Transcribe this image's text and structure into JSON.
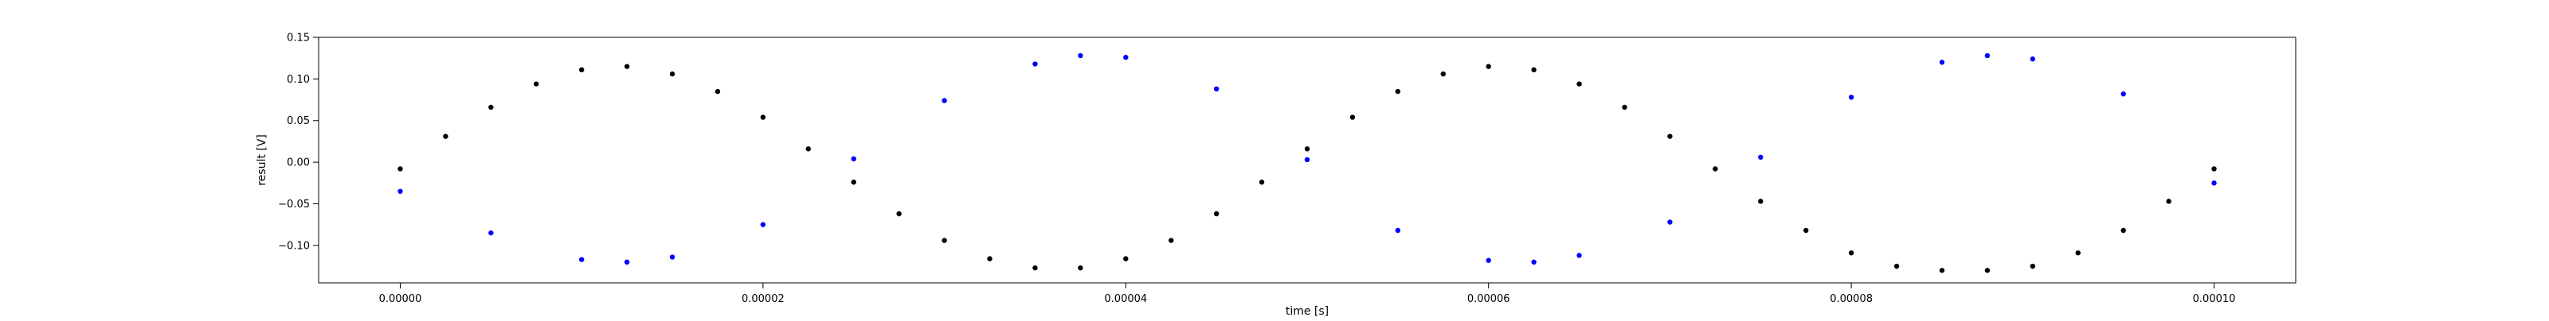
{
  "chart_data": {
    "type": "scatter",
    "title": "",
    "xlabel": "time [s]",
    "ylabel": "result [V]",
    "xlim": [
      -4.5e-06,
      0.0001045
    ],
    "ylim": [
      -0.145,
      0.15
    ],
    "x_ticks": [
      0,
      2e-05,
      4e-05,
      6e-05,
      8e-05,
      0.0001
    ],
    "x_tick_labels": [
      "0.00000",
      "0.00002",
      "0.00004",
      "0.00006",
      "0.00008",
      "0.00010"
    ],
    "y_ticks": [
      -0.1,
      -0.05,
      0.0,
      0.05,
      0.1,
      0.15
    ],
    "y_tick_labels": [
      "−0.10",
      "−0.05",
      "0.00",
      "0.05",
      "0.10",
      "0.15"
    ],
    "grid": false,
    "legend": "none",
    "series": [
      {
        "color": "#0000ff",
        "x": [
          0,
          5e-06,
          1e-05,
          1.25e-05,
          1.5e-05,
          2e-05,
          2.5e-05,
          3e-05,
          3.5e-05,
          3.75e-05,
          4e-05,
          4.5e-05,
          5e-05,
          5.5e-05,
          6e-05,
          6.25e-05,
          6.5e-05,
          7e-05,
          7.5e-05,
          8e-05,
          8.5e-05,
          8.75e-05,
          9e-05,
          9.5e-05,
          0.0001
        ],
        "y": [
          -0.035,
          -0.085,
          -0.117,
          -0.12,
          -0.114,
          -0.075,
          0.004,
          0.074,
          0.118,
          0.128,
          0.126,
          0.088,
          0.003,
          -0.082,
          -0.118,
          -0.12,
          -0.112,
          -0.072,
          0.006,
          0.078,
          0.12,
          0.128,
          0.124,
          0.082,
          -0.025
        ]
      },
      {
        "color": "#000000",
        "x": [
          0,
          2.5e-06,
          5e-06,
          7.5e-06,
          1e-05,
          1.25e-05,
          1.5e-05,
          1.75e-05,
          2e-05,
          2.25e-05,
          2.5e-05,
          2.75e-05,
          3e-05,
          3.25e-05,
          3.5e-05,
          3.75e-05,
          4e-05,
          4.25e-05,
          4.5e-05,
          4.75e-05,
          5e-05,
          5.25e-05,
          5.5e-05,
          5.75e-05,
          6e-05,
          6.25e-05,
          6.5e-05,
          6.75e-05,
          7e-05,
          7.25e-05,
          7.5e-05,
          7.75e-05,
          8e-05,
          8.25e-05,
          8.5e-05,
          8.75e-05,
          9e-05,
          9.25e-05,
          9.5e-05,
          9.75e-05,
          0.0001
        ],
        "y": [
          -0.008,
          0.031,
          0.066,
          0.094,
          0.111,
          0.115,
          0.106,
          0.085,
          0.054,
          0.016,
          -0.024,
          -0.062,
          -0.094,
          -0.116,
          -0.127,
          -0.127,
          -0.116,
          -0.094,
          -0.062,
          -0.024,
          0.016,
          0.054,
          0.085,
          0.106,
          0.115,
          0.111,
          0.094,
          0.066,
          0.031,
          -0.008,
          -0.047,
          -0.082,
          -0.109,
          -0.125,
          -0.13,
          -0.13,
          -0.125,
          -0.109,
          -0.082,
          -0.047,
          -0.008
        ]
      }
    ]
  }
}
